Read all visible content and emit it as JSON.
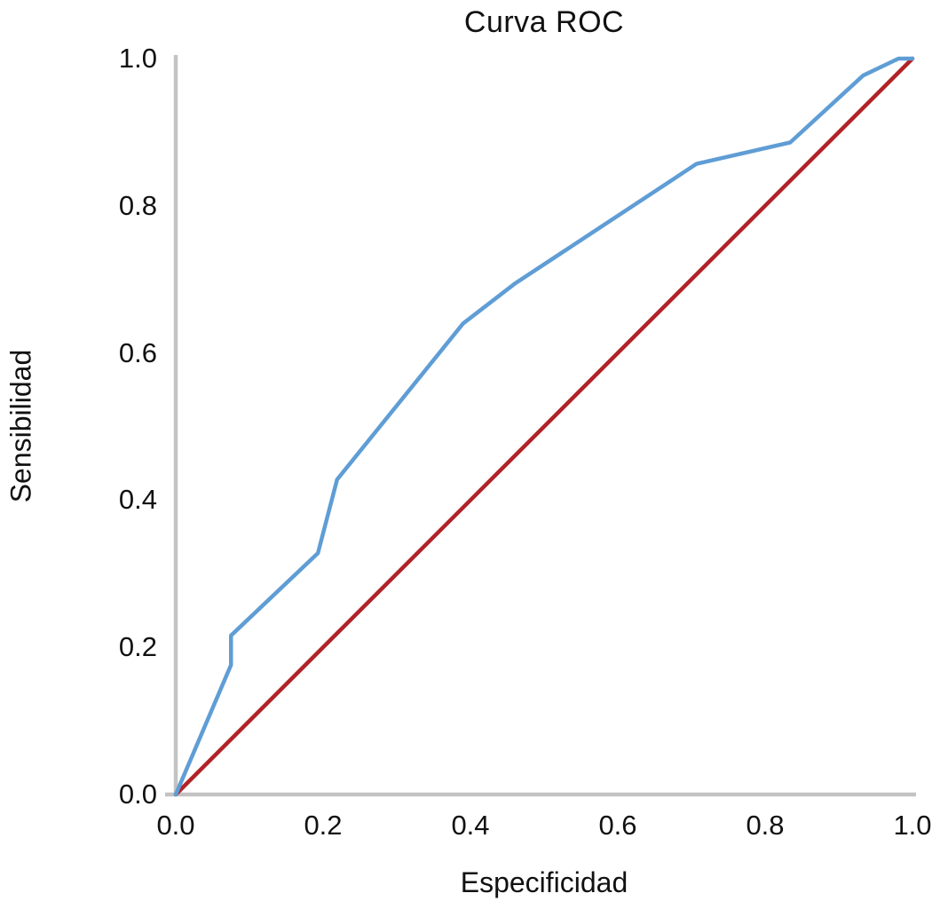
{
  "chart_data": {
    "type": "line",
    "title": "Curva ROC",
    "xlabel": "Especificidad",
    "ylabel": "Sensibilidad",
    "xlim": [
      0,
      1
    ],
    "ylim": [
      0,
      1
    ],
    "x_ticks": [
      0,
      0.2,
      0.4,
      0.6,
      0.8,
      1
    ],
    "x_tick_labels": [
      "0.0",
      "0.2",
      "0.4",
      "0.6",
      "0.8",
      "1.0"
    ],
    "y_ticks": [
      0,
      0.2,
      0.4,
      0.6,
      0.8,
      1
    ],
    "y_tick_labels": [
      "0.0",
      "0.2",
      "0.4",
      "0.6",
      "0.8",
      "1.0"
    ],
    "grid": false,
    "legend": "none",
    "axis_color": "#C3C3C3",
    "text_color": "#111111",
    "series": [
      {
        "name": "roc-curve",
        "color": "#5F9DD5",
        "stroke_width": 4.5,
        "x": [
          0,
          0.075,
          0.075,
          0.193,
          0.219,
          0.39,
          0.46,
          0.707,
          0.834,
          0.933,
          0.981,
          1
        ],
        "y": [
          0,
          0.176,
          0.216,
          0.328,
          0.428,
          0.64,
          0.694,
          0.857,
          0.886,
          0.977,
          1,
          1
        ]
      },
      {
        "name": "reference-diagonal",
        "color": "#B12226",
        "stroke_width": 4.5,
        "x": [
          0,
          1
        ],
        "y": [
          0,
          1
        ]
      }
    ]
  }
}
